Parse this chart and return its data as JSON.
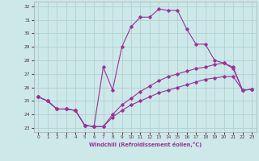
{
  "background_color": "#cce8e8",
  "grid_color": "#aacece",
  "line_color": "#993399",
  "xlabel": "Windchill (Refroidissement éolien,°C)",
  "xlim_min": -0.5,
  "xlim_max": 23.5,
  "ylim_min": 22.7,
  "ylim_max": 32.35,
  "xticks": [
    0,
    1,
    2,
    3,
    4,
    5,
    6,
    7,
    8,
    9,
    10,
    11,
    12,
    13,
    14,
    15,
    16,
    17,
    18,
    19,
    20,
    21,
    22,
    23
  ],
  "yticks": [
    23,
    24,
    25,
    26,
    27,
    28,
    29,
    30,
    31,
    32
  ],
  "curve1_x": [
    0,
    1,
    2,
    3,
    4,
    5,
    6,
    7,
    8,
    9,
    10,
    11,
    12,
    13,
    14,
    15,
    16,
    17,
    18,
    19,
    20,
    21,
    22,
    23
  ],
  "curve1_y": [
    25.3,
    25.0,
    24.4,
    24.4,
    24.3,
    23.2,
    23.1,
    27.5,
    25.8,
    29.0,
    30.5,
    31.2,
    31.2,
    31.8,
    31.7,
    31.7,
    30.3,
    29.2,
    29.2,
    28.0,
    27.8,
    27.4,
    25.8,
    25.85
  ],
  "curve2_x": [
    0,
    1,
    2,
    3,
    4,
    5,
    6,
    7,
    8,
    9,
    10,
    11,
    12,
    13,
    14,
    15,
    16,
    17,
    18,
    19,
    20,
    21,
    22,
    23
  ],
  "curve2_y": [
    25.3,
    25.0,
    24.4,
    24.4,
    24.3,
    23.2,
    23.1,
    23.1,
    24.0,
    24.7,
    25.2,
    25.7,
    26.1,
    26.5,
    26.8,
    27.0,
    27.2,
    27.4,
    27.5,
    27.7,
    27.8,
    27.5,
    25.8,
    25.85
  ],
  "curve3_x": [
    0,
    1,
    2,
    3,
    4,
    5,
    6,
    7,
    8,
    9,
    10,
    11,
    12,
    13,
    14,
    15,
    16,
    17,
    18,
    19,
    20,
    21,
    22,
    23
  ],
  "curve3_y": [
    25.3,
    25.0,
    24.4,
    24.4,
    24.3,
    23.2,
    23.1,
    23.1,
    23.8,
    24.3,
    24.7,
    25.0,
    25.3,
    25.6,
    25.8,
    26.0,
    26.2,
    26.4,
    26.6,
    26.7,
    26.8,
    26.8,
    25.8,
    25.85
  ]
}
